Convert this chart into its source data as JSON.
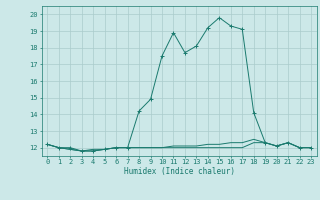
{
  "xlabel": "Humidex (Indice chaleur)",
  "bg_color": "#cce8e8",
  "grid_color": "#aacccc",
  "line_color": "#1a7a6e",
  "xlim": [
    -0.5,
    23.5
  ],
  "ylim": [
    11.5,
    20.5
  ],
  "xticks": [
    0,
    1,
    2,
    3,
    4,
    5,
    6,
    7,
    8,
    9,
    10,
    11,
    12,
    13,
    14,
    15,
    16,
    17,
    18,
    19,
    20,
    21,
    22,
    23
  ],
  "yticks": [
    12,
    13,
    14,
    15,
    16,
    17,
    18,
    19,
    20
  ],
  "series": [
    [
      0,
      12.2
    ],
    [
      1,
      12.0
    ],
    [
      2,
      12.0
    ],
    [
      3,
      11.8
    ],
    [
      4,
      11.8
    ],
    [
      5,
      11.9
    ],
    [
      6,
      12.0
    ],
    [
      7,
      12.0
    ],
    [
      8,
      14.2
    ],
    [
      9,
      14.9
    ],
    [
      10,
      17.5
    ],
    [
      11,
      18.9
    ],
    [
      12,
      17.7
    ],
    [
      13,
      18.1
    ],
    [
      14,
      19.2
    ],
    [
      15,
      19.8
    ],
    [
      16,
      19.3
    ],
    [
      17,
      19.1
    ],
    [
      18,
      14.1
    ],
    [
      19,
      12.3
    ],
    [
      20,
      12.1
    ],
    [
      21,
      12.3
    ],
    [
      22,
      12.0
    ],
    [
      23,
      12.0
    ]
  ],
  "series2": [
    [
      0,
      12.2
    ],
    [
      1,
      12.0
    ],
    [
      2,
      11.9
    ],
    [
      3,
      11.8
    ],
    [
      4,
      11.8
    ],
    [
      5,
      11.9
    ],
    [
      6,
      12.0
    ],
    [
      7,
      12.0
    ],
    [
      8,
      12.0
    ],
    [
      9,
      12.0
    ],
    [
      10,
      12.0
    ],
    [
      11,
      12.0
    ],
    [
      12,
      12.0
    ],
    [
      13,
      12.0
    ],
    [
      14,
      12.0
    ],
    [
      15,
      12.0
    ],
    [
      16,
      12.0
    ],
    [
      17,
      12.0
    ],
    [
      18,
      12.3
    ],
    [
      19,
      12.3
    ],
    [
      20,
      12.1
    ],
    [
      21,
      12.3
    ],
    [
      22,
      12.0
    ],
    [
      23,
      12.0
    ]
  ],
  "series3": [
    [
      0,
      12.2
    ],
    [
      1,
      12.0
    ],
    [
      2,
      11.9
    ],
    [
      3,
      11.8
    ],
    [
      4,
      11.9
    ],
    [
      5,
      11.9
    ],
    [
      6,
      12.0
    ],
    [
      7,
      12.0
    ],
    [
      8,
      12.0
    ],
    [
      9,
      12.0
    ],
    [
      10,
      12.0
    ],
    [
      11,
      12.1
    ],
    [
      12,
      12.1
    ],
    [
      13,
      12.1
    ],
    [
      14,
      12.2
    ],
    [
      15,
      12.2
    ],
    [
      16,
      12.3
    ],
    [
      17,
      12.3
    ],
    [
      18,
      12.5
    ],
    [
      19,
      12.3
    ],
    [
      20,
      12.1
    ],
    [
      21,
      12.3
    ],
    [
      22,
      12.0
    ],
    [
      23,
      12.0
    ]
  ]
}
